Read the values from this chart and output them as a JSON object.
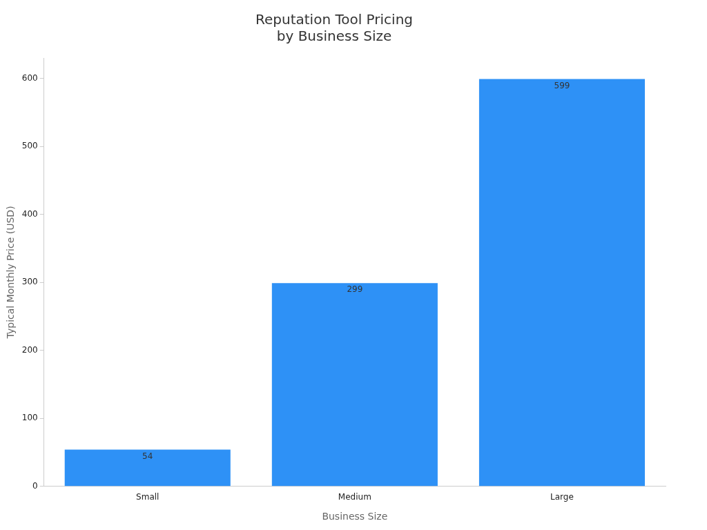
{
  "chart_data": {
    "type": "bar",
    "title": "Reputation Tool Pricing\nby Business Size",
    "xlabel": "Business Size",
    "ylabel": "Typical Monthly Price (USD)",
    "categories": [
      "Small",
      "Medium",
      "Large"
    ],
    "values": [
      54,
      299,
      599
    ],
    "color": "#2e91f6",
    "ylim": [
      0,
      630
    ],
    "yticks": [
      0,
      100,
      200,
      300,
      400,
      500,
      600
    ],
    "grid": false,
    "legend": false,
    "data_labels": true
  }
}
